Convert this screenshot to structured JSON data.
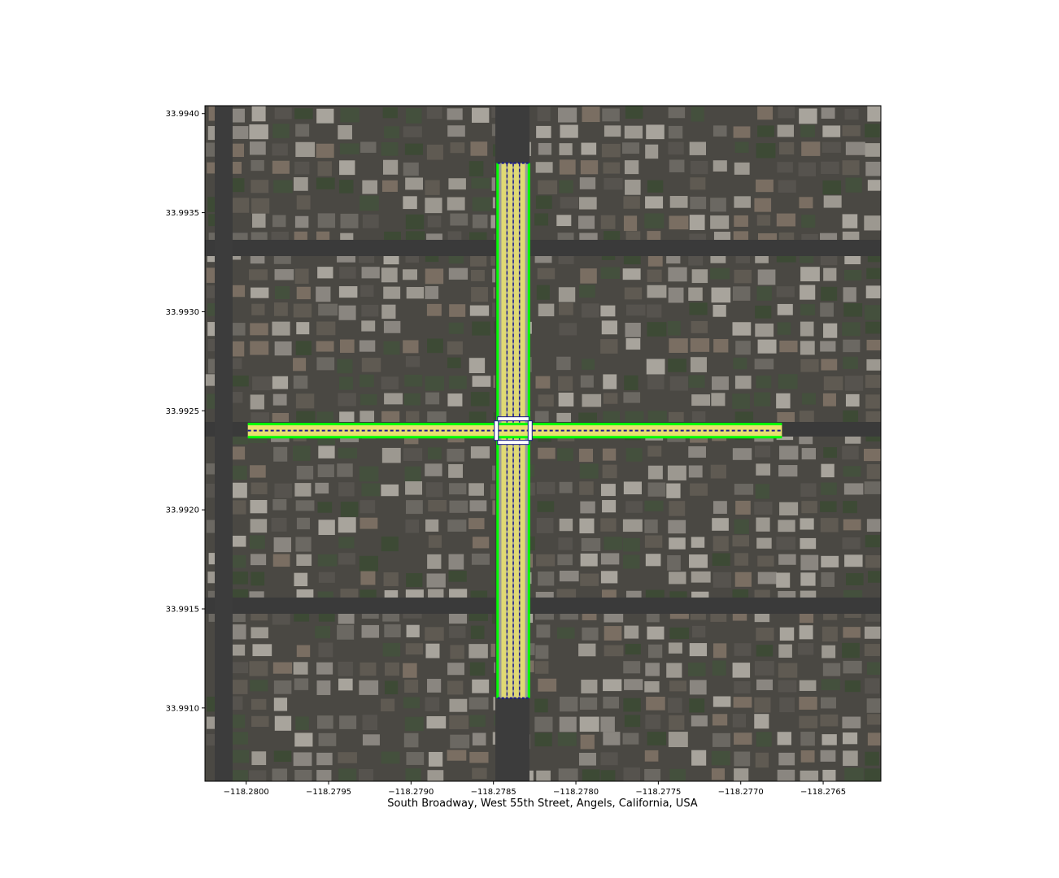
{
  "figure": {
    "xlabel": "South Broadway, West 55th Street, Angels, California, USA"
  },
  "chart_data": {
    "type": "map",
    "xlabel": "South Broadway, West 55th Street, Angels, California, USA",
    "xlim": [
      -118.28025,
      -118.27615
    ],
    "ylim": [
      33.99063,
      33.99404
    ],
    "xticks": [
      -118.28,
      -118.2795,
      -118.279,
      -118.2785,
      -118.278,
      -118.2775,
      -118.277,
      -118.2765
    ],
    "xtick_labels": [
      "−118.2800",
      "−118.2795",
      "−118.2790",
      "−118.2785",
      "−118.2780",
      "−118.2775",
      "−118.2770",
      "−118.2765"
    ],
    "yticks": [
      33.994,
      33.9935,
      33.993,
      33.9925,
      33.992,
      33.9915,
      33.991
    ],
    "ytick_labels": [
      "33.9940",
      "33.9935",
      "33.9930",
      "33.9925",
      "33.9920",
      "33.9915",
      "33.9910"
    ],
    "grid": false,
    "background": "aerial imagery",
    "roads": [
      {
        "name": "South Broadway",
        "orientation": "vertical",
        "lon_center": -118.27838,
        "lat_range": [
          33.99105,
          33.99375
        ],
        "width_deg": 0.00019
      },
      {
        "name": "West 55th Street",
        "orientation": "horizontal",
        "lat_center": 33.9924,
        "lon_range": [
          -118.27999,
          -118.27675
        ],
        "width_deg": 6.6e-05
      }
    ],
    "colors": {
      "road_edge": "#00ff00",
      "lane_fill": "#e8e070",
      "lane_line": "#1a1a8c",
      "surface": "#9a9a9a",
      "crosswalk": "#ffffff"
    }
  }
}
